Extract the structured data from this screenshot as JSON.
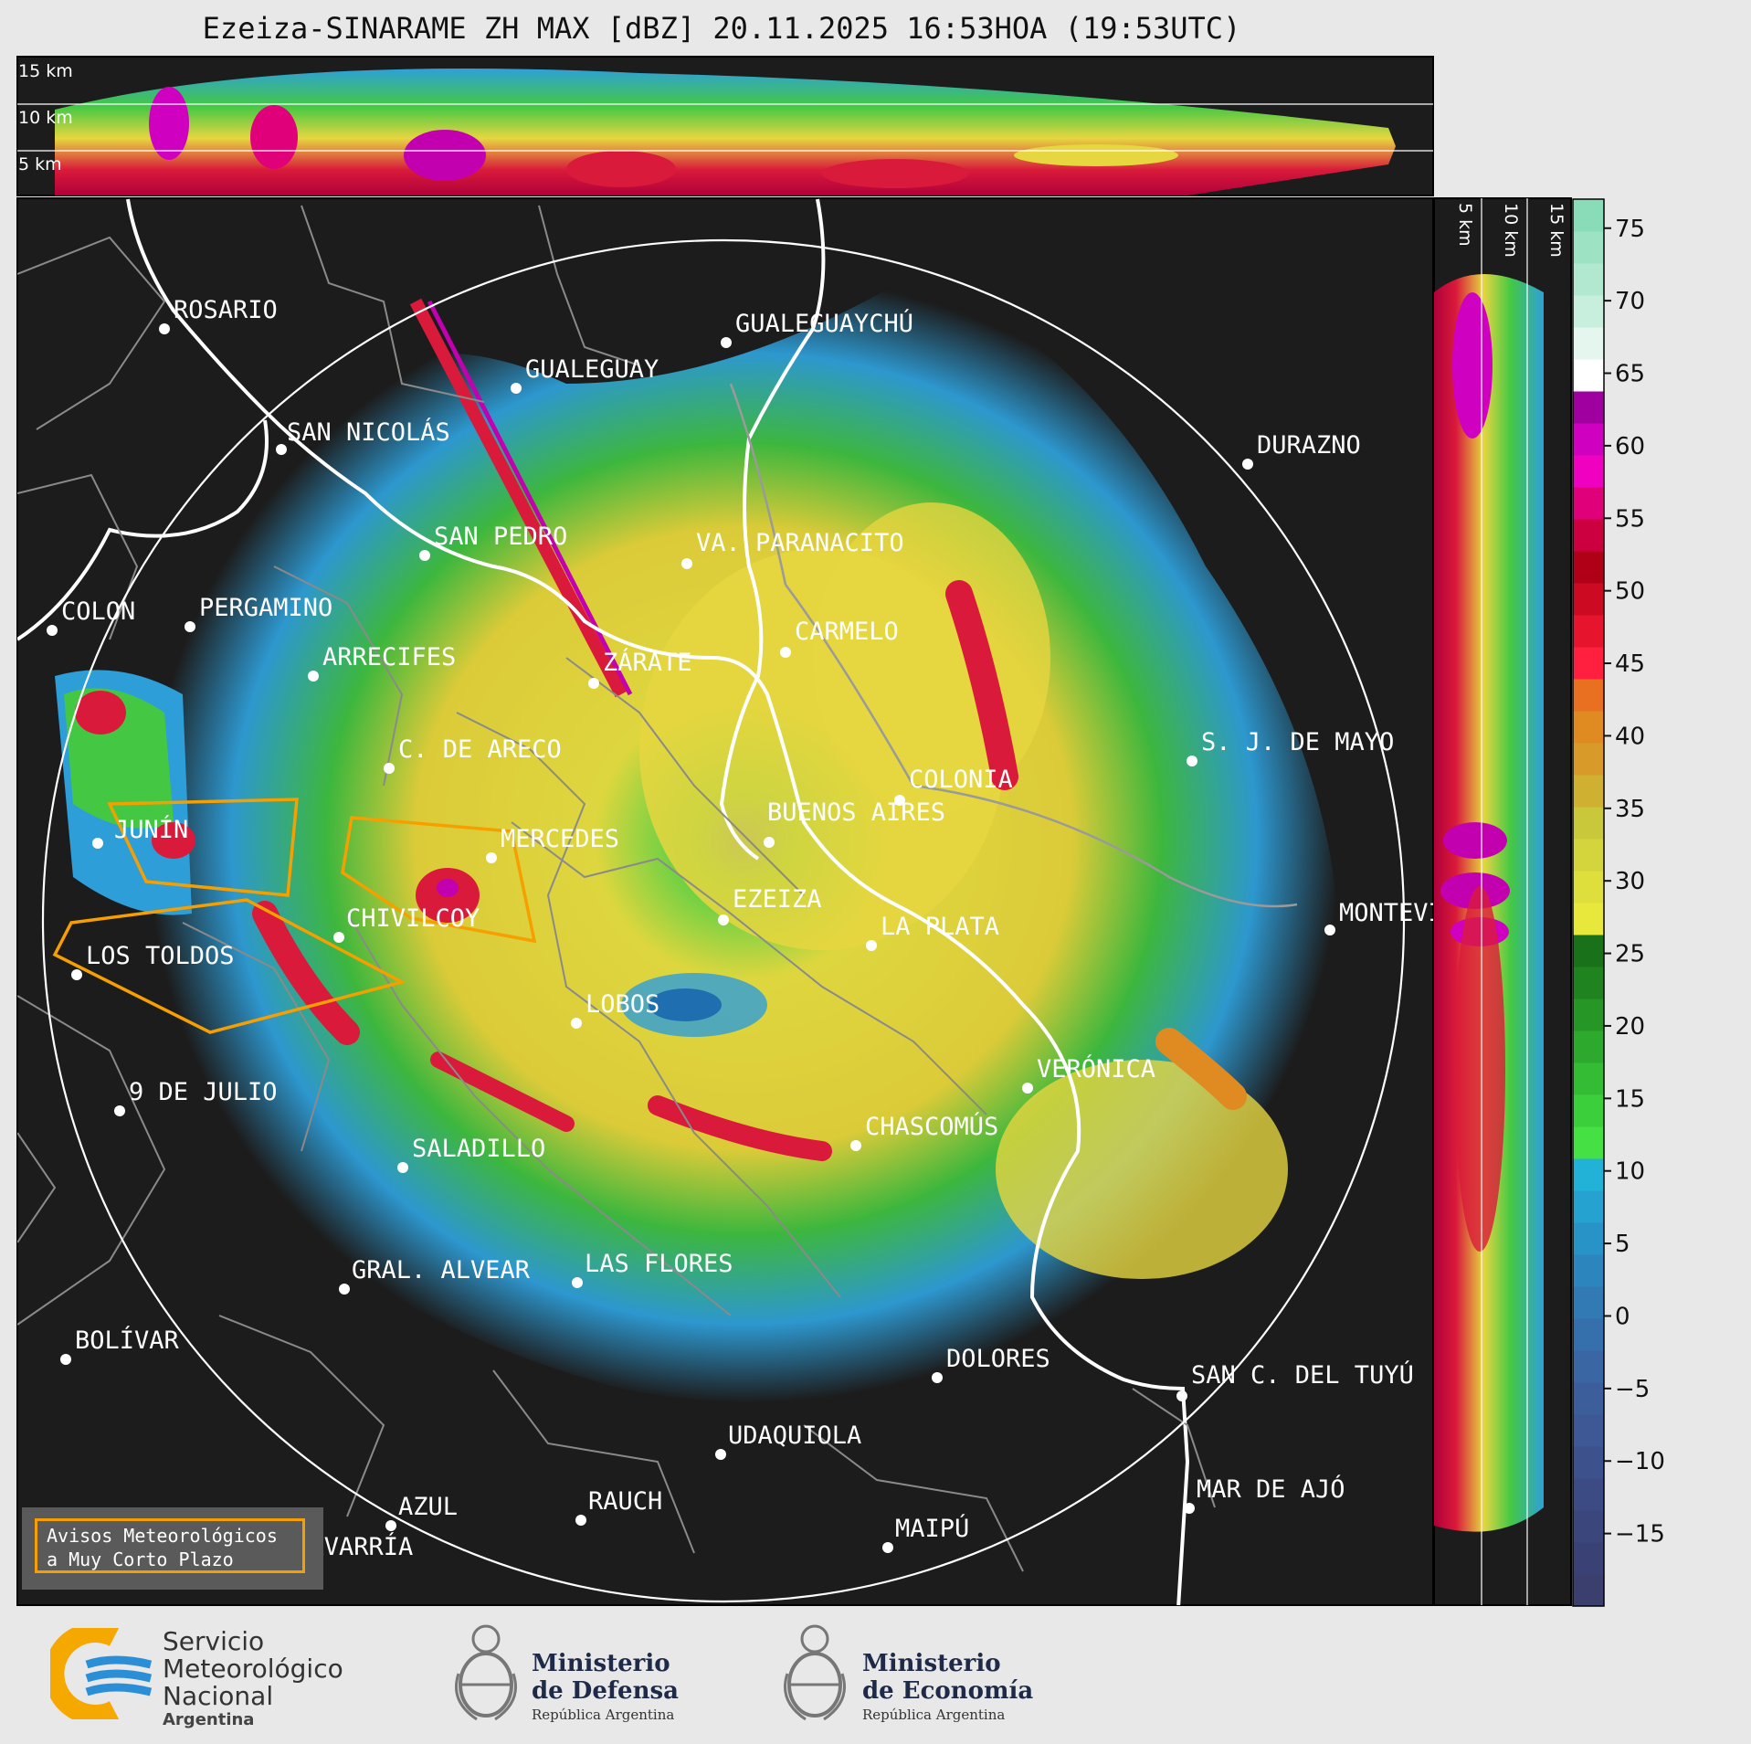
{
  "title": "Ezeiza-SINARAME ZH MAX [dBZ] 20.11.2025 16:53HOA (19:53UTC)",
  "altitude_labels_top": [
    "15 km",
    "10 km",
    "5 km"
  ],
  "altitude_labels_side": [
    "5 km",
    "10 km",
    "15 km"
  ],
  "colorbar": {
    "ticks": [
      "75",
      "70",
      "65",
      "60",
      "55",
      "50",
      "45",
      "40",
      "35",
      "30",
      "25",
      "20",
      "15",
      "10",
      "5",
      "0",
      "−5",
      "−10",
      "−15"
    ],
    "range_dbz": [
      -20,
      77
    ]
  },
  "cities": [
    {
      "name": "ROSARIO"
    },
    {
      "name": "GUALEGUAYCHÚ"
    },
    {
      "name": "GUALEGUAY"
    },
    {
      "name": "SAN NICOLÁS"
    },
    {
      "name": "DURAZNO"
    },
    {
      "name": "SAN PEDRO"
    },
    {
      "name": "VA. PARANACITO"
    },
    {
      "name": "COLON"
    },
    {
      "name": "PERGAMINO"
    },
    {
      "name": "CARMELO"
    },
    {
      "name": "ARRECIFES"
    },
    {
      "name": "ZÁRATE"
    },
    {
      "name": "S. J. DE MAYO"
    },
    {
      "name": "C. DE ARECO"
    },
    {
      "name": "COLONIA"
    },
    {
      "name": "JUNÍN"
    },
    {
      "name": "MERCEDES"
    },
    {
      "name": "BUENOS AIRES"
    },
    {
      "name": "EZEIZA"
    },
    {
      "name": "CHIVILCOY"
    },
    {
      "name": "LA PLATA"
    },
    {
      "name": "MONTEVIDEO"
    },
    {
      "name": "LOS TOLDOS"
    },
    {
      "name": "LOBOS"
    },
    {
      "name": "VERÓNICA"
    },
    {
      "name": "9 DE JULIO"
    },
    {
      "name": "CHASCOMÚS"
    },
    {
      "name": "SALADILLO"
    },
    {
      "name": "GRAL. ALVEAR"
    },
    {
      "name": "LAS FLORES"
    },
    {
      "name": "BOLÍVAR"
    },
    {
      "name": "DOLORES"
    },
    {
      "name": "SAN C. DEL TUYÚ"
    },
    {
      "name": "UDAQUIOLA"
    },
    {
      "name": "MAR DE AJÓ"
    },
    {
      "name": "AZUL"
    },
    {
      "name": "RAUCH"
    },
    {
      "name": "OLAVARRÍA"
    },
    {
      "name": "MAIPÚ"
    }
  ],
  "warning_legend": {
    "line1": "Avisos Meteorológicos",
    "line2": "a Muy Corto Plazo"
  },
  "logos": {
    "smn": {
      "line1": "Servicio",
      "line2": "Meteorológico",
      "line3": "Nacional",
      "line4": "Argentina"
    },
    "defensa": {
      "line1": "Ministerio",
      "line2": "de Defensa",
      "line3": "República Argentina"
    },
    "economia": {
      "line1": "Ministerio",
      "line2": "de Economía",
      "line3": "República Argentina"
    }
  },
  "colors": {
    "background": "#1c1c1c",
    "warning_outline": "#f5a000",
    "coastline": "#ffffff",
    "borders": "#8a8a8a",
    "smn_blue": "#2a8fd6",
    "smn_yellow": "#f5a800"
  }
}
